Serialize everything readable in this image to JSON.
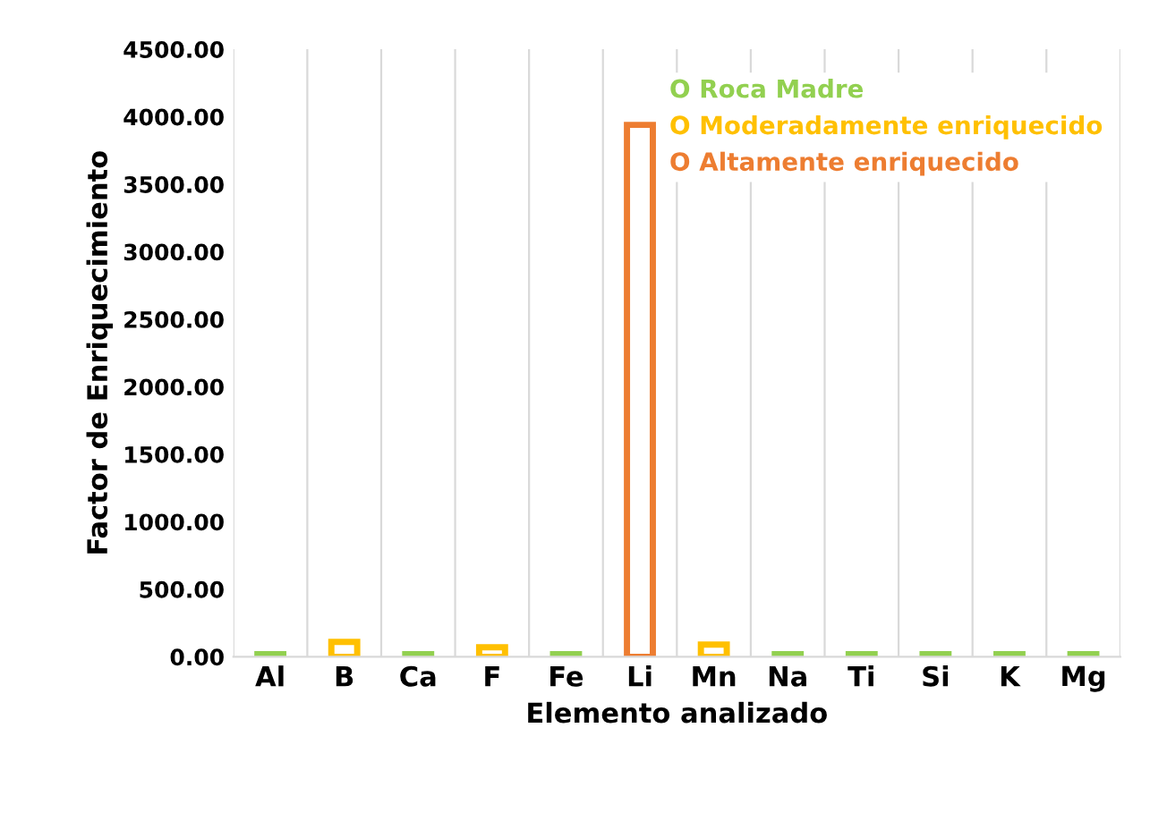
{
  "chart_data": {
    "type": "bar",
    "xlabel": "Elemento analizado",
    "ylabel": "Factor de Enriquecimiento",
    "categories": [
      "Al",
      "B",
      "Ca",
      "F",
      "Fe",
      "Li",
      "Mn",
      "Na",
      "Ti",
      "Si",
      "K",
      "Mg"
    ],
    "series": [
      {
        "name": "O Roca Madre",
        "color": "#92d050",
        "values": [
          20,
          null,
          20,
          null,
          20,
          null,
          null,
          20,
          20,
          20,
          20,
          20
        ]
      },
      {
        "name": "O Moderadamente enriquecido",
        "color": "#ffc000",
        "values": [
          null,
          110,
          null,
          70,
          null,
          null,
          90,
          null,
          null,
          null,
          null,
          null
        ]
      },
      {
        "name": "O Altamente enriquecido",
        "color": "#ed7d31",
        "values": [
          null,
          null,
          null,
          null,
          null,
          3940,
          null,
          null,
          null,
          null,
          null,
          null
        ]
      }
    ],
    "ylim": [
      0,
      4500
    ],
    "yticks": [
      {
        "value": 0,
        "label": "0.00"
      },
      {
        "value": 500,
        "label": "500.00"
      },
      {
        "value": 1000,
        "label": "1000.00"
      },
      {
        "value": 1500,
        "label": "1500.00"
      },
      {
        "value": 2000,
        "label": "2000.00"
      },
      {
        "value": 2500,
        "label": "2500.00"
      },
      {
        "value": 3000,
        "label": "3000.00"
      },
      {
        "value": 3500,
        "label": "3500.00"
      },
      {
        "value": 4000,
        "label": "4000.00"
      },
      {
        "value": 4500,
        "label": "4500.00"
      }
    ],
    "grid": "x",
    "legend": "top right"
  }
}
